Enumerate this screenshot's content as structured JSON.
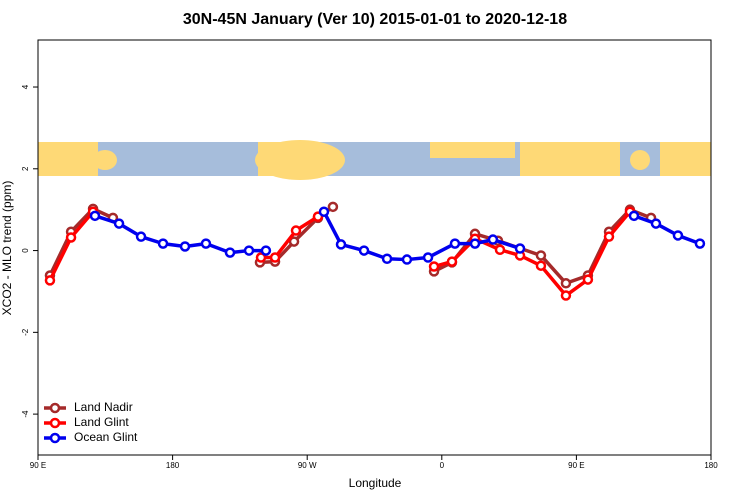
{
  "chart_data": {
    "type": "line",
    "title": "30N-45N January (Ver 10)   2015-01-01 to 2020-12-18",
    "x_label": "Longitude",
    "y_label": "XCO2 - MLO trend (ppm)",
    "xlim": [
      90,
      540
    ],
    "xticks": [
      {
        "value": 90,
        "label": "90 E"
      },
      {
        "value": 180,
        "label": "180"
      },
      {
        "value": 270,
        "label": "90 W"
      },
      {
        "value": 360,
        "label": "0"
      },
      {
        "value": 450,
        "label": "90 E"
      },
      {
        "value": 540,
        "label": "180"
      }
    ],
    "ylim": [
      -5,
      5.15
    ],
    "yticks": [
      -4,
      -2,
      0,
      2,
      4
    ],
    "legend": "bottom-left",
    "series": [
      {
        "name": "Land Nadir",
        "color": "#a52a2a",
        "x": [
          98.0,
          112.1,
          126.8,
          140.1,
          null,
          238.4,
          248.5,
          261.2,
          277.2,
          287.2,
          null,
          354.8,
          366.8,
          382.2,
          397.6,
          426.3,
          443.0,
          457.7,
          471.8,
          485.8,
          499.9
        ],
        "values": [
          -0.61,
          0.46,
          1.02,
          0.8,
          null,
          -0.29,
          -0.27,
          0.22,
          0.8,
          1.07,
          null,
          -0.51,
          -0.29,
          0.41,
          0.24,
          -0.12,
          -0.8,
          -0.61,
          0.46,
          1.0,
          0.8
        ]
      },
      {
        "name": "Land Glint",
        "color": "#ff0000",
        "x": [
          98.0,
          112.1,
          126.8,
          null,
          239.1,
          248.5,
          262.5,
          277.2,
          null,
          354.8,
          366.8,
          382.2,
          398.9,
          412.3,
          426.3,
          443.0,
          457.7,
          471.8,
          485.8
        ],
        "values": [
          -0.73,
          0.32,
          0.95,
          null,
          -0.17,
          -0.17,
          0.49,
          0.83,
          null,
          -0.39,
          -0.27,
          0.29,
          0.02,
          -0.12,
          -0.37,
          -1.1,
          -0.71,
          0.34,
          0.95
        ]
      },
      {
        "name": "Ocean Glint",
        "color": "#0000ee",
        "x": [
          128.1,
          144.2,
          158.9,
          173.6,
          188.3,
          202.3,
          218.4,
          231.1,
          242.4,
          null,
          281.2,
          292.6,
          308.0,
          323.4,
          336.7,
          350.8,
          368.8,
          382.2,
          394.2,
          412.3,
          null,
          488.5,
          503.2,
          517.9,
          532.6
        ],
        "values": [
          0.85,
          0.66,
          0.34,
          0.17,
          0.1,
          0.17,
          -0.05,
          0.0,
          0.0,
          null,
          0.95,
          0.15,
          0.0,
          -0.2,
          -0.22,
          -0.17,
          0.17,
          0.17,
          0.27,
          0.05,
          null,
          0.85,
          0.66,
          0.37,
          0.17
        ]
      }
    ]
  }
}
